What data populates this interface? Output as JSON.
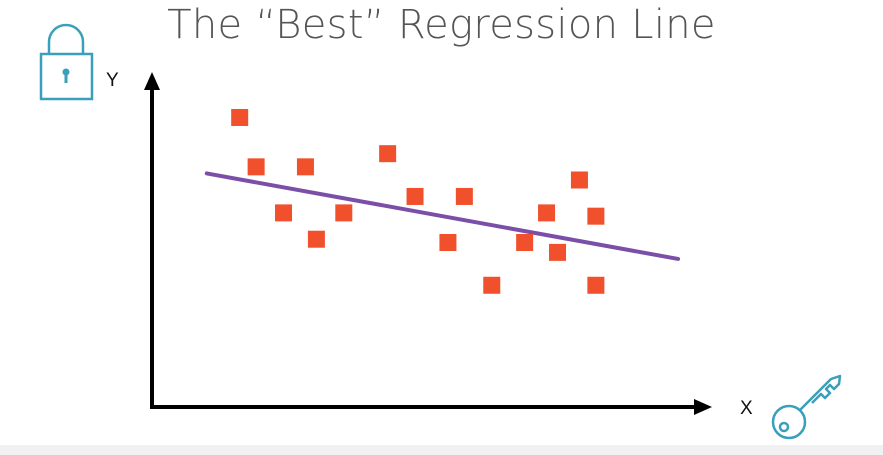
{
  "title": "The “Best” Regression Line",
  "colors": {
    "points": "#f0502b",
    "regression_line": "#7b4fa8",
    "axes": "#000000",
    "icons": "#3a9fba",
    "title": "#555555"
  },
  "icons": {
    "top_left": "padlock-icon",
    "bottom_right": "key-icon"
  },
  "chart_data": {
    "type": "scatter",
    "title": "The “Best” Regression Line",
    "xlabel": "X",
    "ylabel": "Y",
    "xlim": [
      0,
      100
    ],
    "ylim": [
      0,
      100
    ],
    "grid": false,
    "legend": "none",
    "points": [
      {
        "x": 16,
        "y": 88
      },
      {
        "x": 19,
        "y": 73
      },
      {
        "x": 24,
        "y": 59
      },
      {
        "x": 28,
        "y": 73
      },
      {
        "x": 30,
        "y": 51
      },
      {
        "x": 35,
        "y": 59
      },
      {
        "x": 43,
        "y": 77
      },
      {
        "x": 48,
        "y": 64
      },
      {
        "x": 54,
        "y": 50
      },
      {
        "x": 57,
        "y": 64
      },
      {
        "x": 62,
        "y": 37
      },
      {
        "x": 68,
        "y": 50
      },
      {
        "x": 72,
        "y": 59
      },
      {
        "x": 74,
        "y": 47
      },
      {
        "x": 78,
        "y": 69
      },
      {
        "x": 81,
        "y": 58
      },
      {
        "x": 81,
        "y": 37
      }
    ],
    "regression_line": {
      "x1": 10,
      "y1": 71,
      "x2": 96,
      "y2": 45
    }
  }
}
